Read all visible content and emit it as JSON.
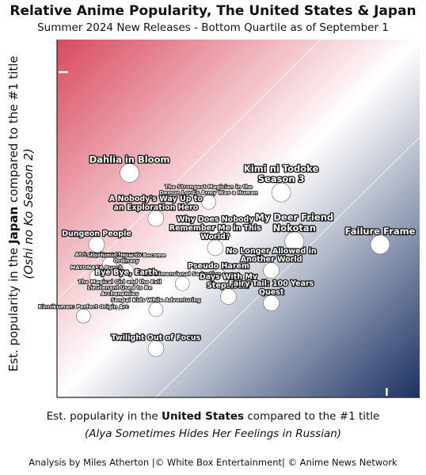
{
  "chart_data": {
    "type": "scatter",
    "title": "Relative Anime Popularity, The United States & Japan",
    "subtitle": "Summer 2024 New Releases - Bottom Quartile as of September 1",
    "xlabel": {
      "prefix": "Est. popularity in the ",
      "emphasis": "United States",
      "suffix": " compared to the #1 title",
      "reference": "(Alya Sometimes Hides Her Feelings in Russian)"
    },
    "ylabel": {
      "prefix": "Est. popularity in the ",
      "emphasis": "Japan",
      "suffix": " compared to the #1 title",
      "reference": "(Oshi no Ko Season 2)"
    },
    "xlim": [
      0,
      1.1
    ],
    "ylim": [
      0,
      1.1
    ],
    "grid": false,
    "diagonal_guides": true,
    "colors": {
      "japan_corner": "#d94a5e",
      "us_corner": "#1b3263",
      "marker": "#ffffff"
    },
    "points": [
      {
        "label": "Dahlia in Bloom",
        "x": 0.22,
        "y": 0.69,
        "size": "large"
      },
      {
        "label": "Kimi ni Todoke Season 3",
        "x": 0.68,
        "y": 0.63,
        "size": "large"
      },
      {
        "label": "The Strongest Magician in the Demon Lord's Army Was a Human",
        "x": 0.46,
        "y": 0.6,
        "size": "small"
      },
      {
        "label": "A Nobody's Way Up to an Exploration Hero",
        "x": 0.3,
        "y": 0.55,
        "size": "medium"
      },
      {
        "label": "My Deer Friend Nokotan",
        "x": 0.72,
        "y": 0.48,
        "size": "large"
      },
      {
        "label": "Failure Frame",
        "x": 0.98,
        "y": 0.47,
        "size": "large"
      },
      {
        "label": "Dungeon People",
        "x": 0.12,
        "y": 0.47,
        "size": "medium"
      },
      {
        "label": "Why Does Nobody Remember Me in This World?",
        "x": 0.48,
        "y": 0.46,
        "size": "medium"
      },
      {
        "label": "Atri -My Dear Moments-",
        "x": 0.16,
        "y": 0.41,
        "size": "small"
      },
      {
        "label": "Shoshimin: How to Become Ordinary",
        "x": 0.21,
        "y": 0.39,
        "size": "small"
      },
      {
        "label": "No Longer Allowed in Another World",
        "x": 0.65,
        "y": 0.39,
        "size": "medium"
      },
      {
        "label": "Pseudo Harem",
        "x": 0.49,
        "y": 0.37,
        "size": "medium"
      },
      {
        "label": "MAYONAKA Punch",
        "x": 0.12,
        "y": 0.37,
        "size": "small"
      },
      {
        "label": "2.5 Dimensional Seduction",
        "x": 0.38,
        "y": 0.35,
        "size": "small"
      },
      {
        "label": "Bye Bye, Earth",
        "x": 0.21,
        "y": 0.35,
        "size": "medium"
      },
      {
        "label": "Days With My Stepsister",
        "x": 0.52,
        "y": 0.31,
        "size": "medium"
      },
      {
        "label": "The Magical Girl and the Evil Lieutenant Used to Be Archenemies",
        "x": 0.19,
        "y": 0.29,
        "size": "small"
      },
      {
        "label": "Fairy Tail: 100 Years Quest",
        "x": 0.65,
        "y": 0.29,
        "size": "medium"
      },
      {
        "label": "Senpai Kids While Adventuring",
        "x": 0.3,
        "y": 0.27,
        "size": "small"
      },
      {
        "label": "Kinnikuman: Perfect Origin Arc",
        "x": 0.08,
        "y": 0.25,
        "size": "small"
      },
      {
        "label": "Twilight Out of Focus",
        "x": 0.3,
        "y": 0.15,
        "size": "medium"
      }
    ]
  },
  "footer": "Analysis by Miles Atherton |© White Box Entertainment| © Anime News Network"
}
